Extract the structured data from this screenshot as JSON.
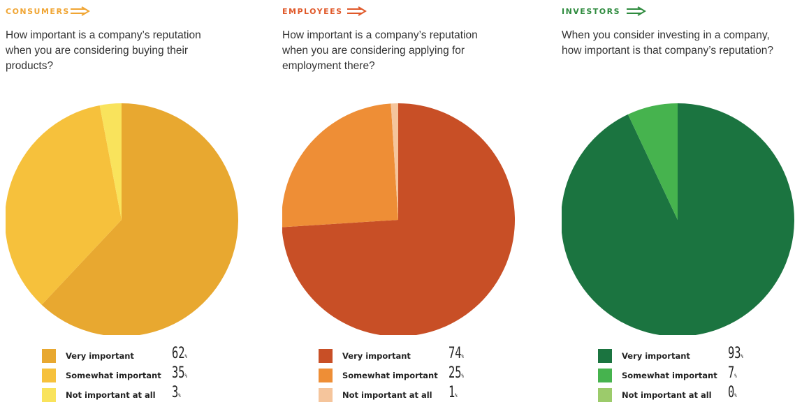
{
  "chart_data": [
    {
      "type": "pie",
      "label": "CONSUMERS",
      "label_color": "#f0a533",
      "title": "How important is a company’s reputation when you are considering buying their products?",
      "categories": [
        "Very important",
        "Somewhat important",
        "Not important at all"
      ],
      "values": [
        62,
        35,
        3
      ],
      "unit": "%",
      "colors": [
        "#e8a830",
        "#f6c13c",
        "#f9e35c"
      ]
    },
    {
      "type": "pie",
      "label": "EMPLOYEES",
      "label_color": "#e0592a",
      "title": "How important is a company’s reputation when you are considering applying for employment there?",
      "categories": [
        "Very important",
        "Somewhat important",
        "Not important at all"
      ],
      "values": [
        74,
        25,
        1
      ],
      "unit": "%",
      "colors": [
        "#c84f26",
        "#ee8e36",
        "#f5c59c"
      ]
    },
    {
      "type": "pie",
      "label": "INVESTORS",
      "label_color": "#2e8b3e",
      "title": "When you consider investing in a company, how important is that company’s reputation?",
      "categories": [
        "Very important",
        "Somewhat important",
        "Not important at all"
      ],
      "values": [
        93,
        7,
        0
      ],
      "unit": "%",
      "colors": [
        "#1b7440",
        "#46b34e",
        "#9ccb6b"
      ]
    }
  ]
}
